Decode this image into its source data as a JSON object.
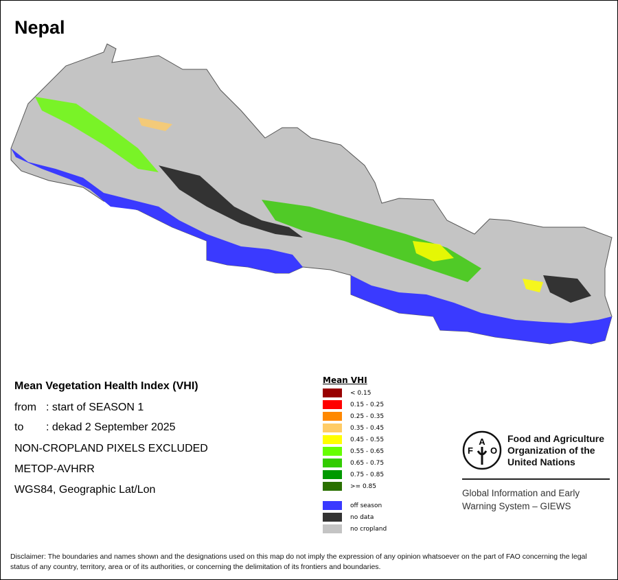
{
  "title": "Nepal",
  "info": {
    "heading": "Mean Vegetation Health Index (VHI)",
    "from_label": "from",
    "from_value": ": start of SEASON 1",
    "to_label": "to",
    "to_value": ": dekad 2 September 2025",
    "line3": "NON-CROPLAND PIXELS EXCLUDED",
    "line4": "METOP-AVHRR",
    "line5": "WGS84, Geographic Lat/Lon"
  },
  "legend": {
    "title": "Mean VHI",
    "classes": [
      {
        "label": "< 0.15",
        "color": "#990000"
      },
      {
        "label": "0.15 - 0.25",
        "color": "#ff0000"
      },
      {
        "label": "0.25 - 0.35",
        "color": "#ff8800"
      },
      {
        "label": "0.35 - 0.45",
        "color": "#ffcc66"
      },
      {
        "label": "0.45 - 0.55",
        "color": "#ffff00"
      },
      {
        "label": "0.55 - 0.65",
        "color": "#66ff00"
      },
      {
        "label": "0.65 - 0.75",
        "color": "#33cc00"
      },
      {
        "label": "0.75 - 0.85",
        "color": "#009900"
      },
      {
        "label": ">= 0.85",
        "color": "#2a7000"
      }
    ],
    "other": [
      {
        "label": "off season",
        "color": "#3a3aff"
      },
      {
        "label": "no data",
        "color": "#333333"
      },
      {
        "label": "no cropland",
        "color": "#c4c4c4"
      }
    ]
  },
  "fao": {
    "name_line1": "Food and Agriculture",
    "name_line2": "Organization of the",
    "name_line3": "United Nations",
    "logo_text": "FAO FIAT PANIS",
    "giews_line1": "Global Information and Early",
    "giews_line2": "Warning System – GIEWS"
  },
  "disclaimer": "Disclaimer: The boundaries and names shown and the designations used on this map do not imply the expression of any opinion whatsoever on the part of FAO concerning the legal status of any country, territory, area or of its authorities, or concerning the delimitation of its frontiers and boundaries."
}
